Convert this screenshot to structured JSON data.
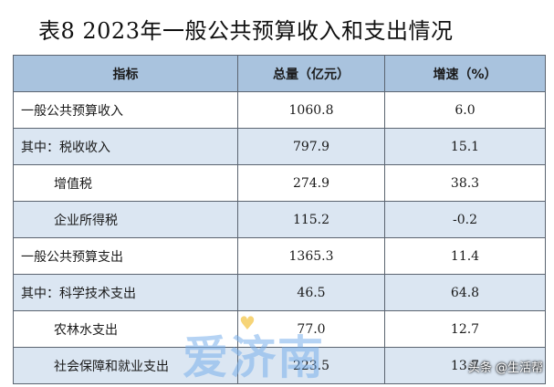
{
  "title": "表8  2023年一般公共预算收入和支出情况",
  "table": {
    "headers": [
      "指标",
      "总量（亿元）",
      "增速（%）"
    ],
    "rows": [
      {
        "name": "一般公共预算收入",
        "total": "1060.8",
        "growth": "6.0"
      },
      {
        "name": "其中：税收收入",
        "total": "797.9",
        "growth": "15.1"
      },
      {
        "name": "增值税",
        "total": "274.9",
        "growth": "38.3"
      },
      {
        "name": "企业所得税",
        "total": "115.2",
        "growth": "-0.2"
      },
      {
        "name": "一般公共预算支出",
        "total": "1365.3",
        "growth": "11.4"
      },
      {
        "name": "其中：科学技术支出",
        "total": "46.5",
        "growth": "64.8"
      },
      {
        "name": "农林水支出",
        "total": "77.0",
        "growth": "12.7"
      },
      {
        "name": "社会保障和就业支出",
        "total": "223.5",
        "growth": "13.7"
      }
    ]
  },
  "watermark": {
    "text": "爱济南",
    "accent": "♥"
  },
  "source": "头条 @生活帮",
  "colors": {
    "header_bg": "#a9c3de",
    "shaded_row_bg": "#dbe6f2",
    "border": "#5b6470",
    "watermark": "#78afeb"
  }
}
